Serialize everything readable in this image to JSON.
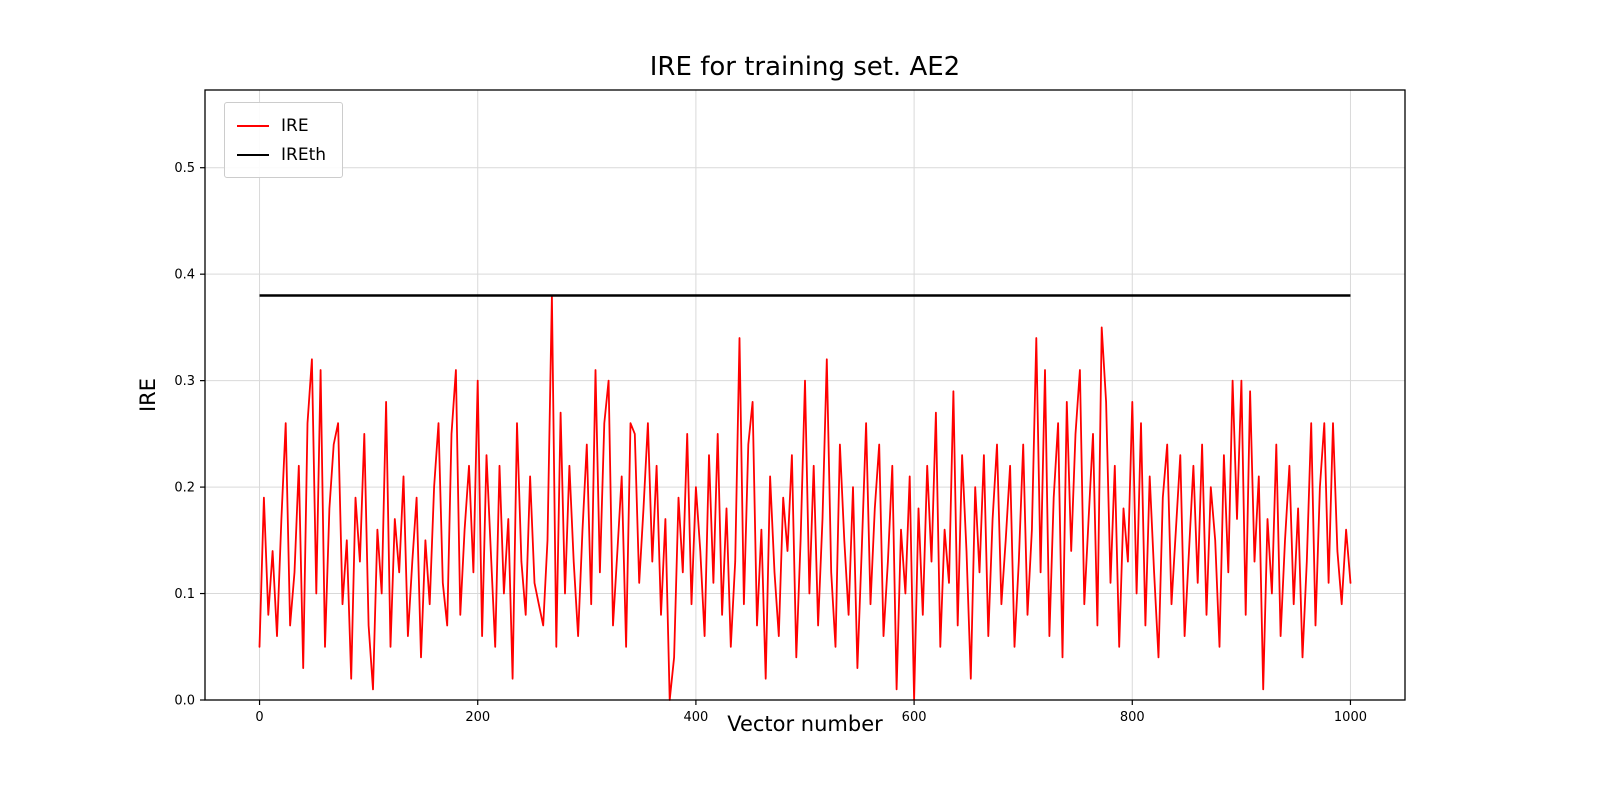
{
  "figure": {
    "background": "#ffffff"
  },
  "chart_data": {
    "type": "line",
    "title": "IRE for training set. AE2",
    "xlabel": "Vector number",
    "ylabel": "IRE",
    "xlim": [
      -50,
      1050
    ],
    "ylim": [
      0,
      0.573
    ],
    "xticks": [
      0,
      200,
      400,
      600,
      800,
      1000
    ],
    "yticks": [
      0.0,
      0.1,
      0.2,
      0.3,
      0.4,
      0.5
    ],
    "grid": true,
    "grid_color": "#d9d9d9",
    "axis_color": "#000000",
    "legend": {
      "position": "upper left",
      "entries": [
        {
          "label": "IRE",
          "color": "#ff0000"
        },
        {
          "label": "IREth",
          "color": "#000000"
        }
      ]
    },
    "series": [
      {
        "name": "IRE",
        "type": "line",
        "color": "#ff0000",
        "x_start": 0,
        "x_step": 4,
        "values": [
          0.05,
          0.19,
          0.08,
          0.14,
          0.06,
          0.17,
          0.26,
          0.07,
          0.12,
          0.22,
          0.03,
          0.26,
          0.32,
          0.1,
          0.31,
          0.05,
          0.18,
          0.24,
          0.26,
          0.09,
          0.15,
          0.02,
          0.19,
          0.13,
          0.25,
          0.07,
          0.01,
          0.16,
          0.1,
          0.28,
          0.05,
          0.17,
          0.12,
          0.21,
          0.06,
          0.13,
          0.19,
          0.04,
          0.15,
          0.09,
          0.2,
          0.26,
          0.11,
          0.07,
          0.25,
          0.31,
          0.08,
          0.16,
          0.22,
          0.12,
          0.3,
          0.06,
          0.23,
          0.14,
          0.05,
          0.22,
          0.1,
          0.17,
          0.02,
          0.26,
          0.13,
          0.08,
          0.21,
          0.11,
          0.09,
          0.07,
          0.15,
          0.38,
          0.05,
          0.27,
          0.1,
          0.22,
          0.13,
          0.06,
          0.16,
          0.24,
          0.09,
          0.31,
          0.12,
          0.26,
          0.3,
          0.07,
          0.14,
          0.21,
          0.05,
          0.26,
          0.25,
          0.11,
          0.18,
          0.26,
          0.13,
          0.22,
          0.08,
          0.17,
          0.0,
          0.04,
          0.19,
          0.12,
          0.25,
          0.09,
          0.2,
          0.14,
          0.06,
          0.23,
          0.11,
          0.25,
          0.08,
          0.18,
          0.05,
          0.13,
          0.34,
          0.09,
          0.24,
          0.28,
          0.07,
          0.16,
          0.02,
          0.21,
          0.12,
          0.06,
          0.19,
          0.14,
          0.23,
          0.04,
          0.15,
          0.3,
          0.1,
          0.22,
          0.07,
          0.17,
          0.32,
          0.12,
          0.05,
          0.24,
          0.15,
          0.08,
          0.2,
          0.03,
          0.14,
          0.26,
          0.09,
          0.18,
          0.24,
          0.06,
          0.13,
          0.22,
          0.01,
          0.16,
          0.1,
          0.21,
          0.0,
          0.18,
          0.08,
          0.22,
          0.13,
          0.27,
          0.05,
          0.16,
          0.11,
          0.29,
          0.07,
          0.23,
          0.14,
          0.02,
          0.2,
          0.12,
          0.23,
          0.06,
          0.17,
          0.24,
          0.09,
          0.15,
          0.22,
          0.05,
          0.13,
          0.24,
          0.08,
          0.16,
          0.34,
          0.12,
          0.31,
          0.06,
          0.19,
          0.26,
          0.04,
          0.28,
          0.14,
          0.25,
          0.31,
          0.09,
          0.17,
          0.25,
          0.07,
          0.35,
          0.28,
          0.11,
          0.22,
          0.05,
          0.18,
          0.13,
          0.28,
          0.1,
          0.26,
          0.07,
          0.21,
          0.12,
          0.04,
          0.19,
          0.24,
          0.09,
          0.16,
          0.23,
          0.06,
          0.14,
          0.22,
          0.11,
          0.24,
          0.08,
          0.2,
          0.15,
          0.05,
          0.23,
          0.12,
          0.3,
          0.17,
          0.3,
          0.08,
          0.29,
          0.13,
          0.21,
          0.01,
          0.17,
          0.1,
          0.24,
          0.06,
          0.15,
          0.22,
          0.09,
          0.18,
          0.04,
          0.13,
          0.26,
          0.07,
          0.2,
          0.26,
          0.11,
          0.26,
          0.14,
          0.09,
          0.16,
          0.11
        ]
      },
      {
        "name": "IREth",
        "type": "hline",
        "color": "#000000",
        "value": 0.38,
        "x_range": [
          0,
          1000
        ]
      }
    ]
  }
}
